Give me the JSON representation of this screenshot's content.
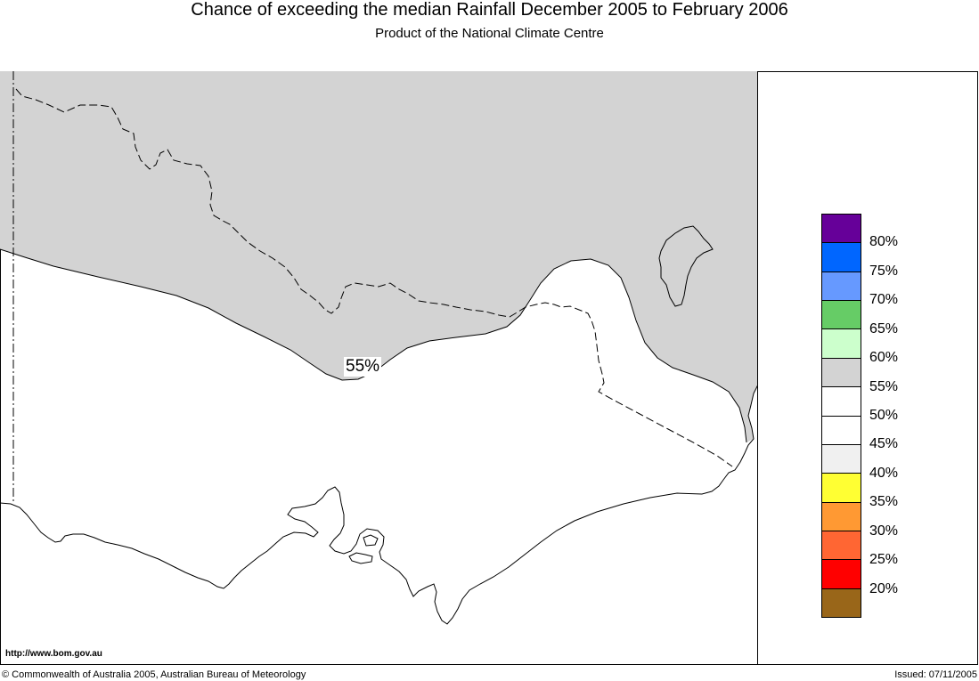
{
  "title": "Chance of exceeding the median Rainfall December 2005 to February 2006",
  "subtitle": "Product of the National Climate Centre",
  "map": {
    "contour_label": "55%",
    "shaded_color": "#D3D3D3",
    "line_color": "#000000"
  },
  "legend": {
    "swatches": [
      "#660099",
      "#0066FF",
      "#6699FF",
      "#66CC66",
      "#CCFFCC",
      "#D3D3D3",
      "#FFFFFF",
      "#FFFFFF",
      "#F0F0F0",
      "#FFFF33",
      "#FF9933",
      "#FF6633",
      "#FF0000",
      "#996619"
    ],
    "labels": [
      "80%",
      "75%",
      "70%",
      "65%",
      "60%",
      "55%",
      "50%",
      "45%",
      "40%",
      "35%",
      "30%",
      "25%",
      "20%"
    ]
  },
  "footer": {
    "url": "http://www.bom.gov.au",
    "copyright": "© Commonwealth of Australia 2005, Australian Bureau of Meteorology",
    "issued": "Issued: 07/11/2005"
  }
}
